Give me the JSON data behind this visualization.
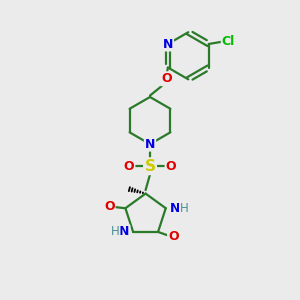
{
  "background_color": "#ebebeb",
  "bond_color": "#2a7a2a",
  "atom_colors": {
    "N": "#0000e0",
    "O": "#e00000",
    "S": "#cccc00",
    "Cl": "#00bb00",
    "H": "#4a9090",
    "C": "#2a7a2a"
  },
  "line_width": 1.6,
  "figsize": [
    3.0,
    3.0
  ],
  "dpi": 100
}
